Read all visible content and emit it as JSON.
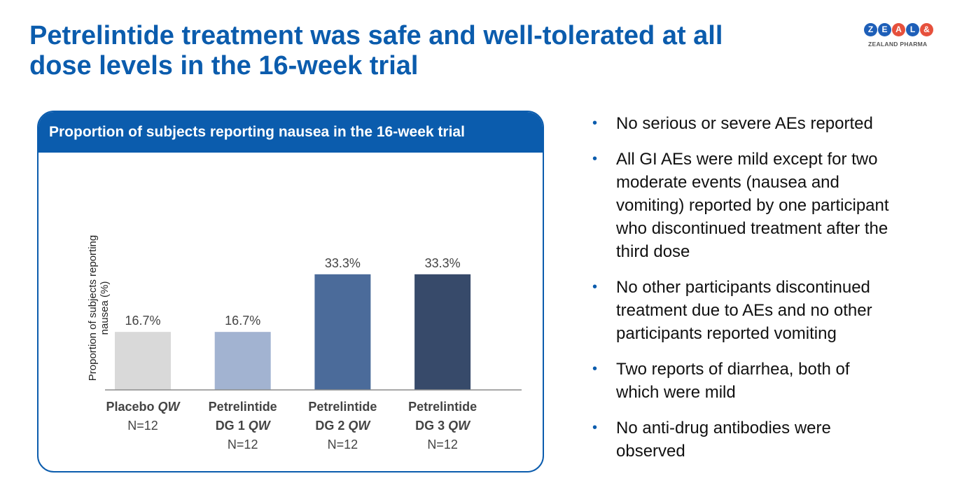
{
  "slide": {
    "title": "Petrelintide treatment was safe and well-tolerated at all dose levels in the 16-week trial"
  },
  "logo": {
    "letters": [
      "Z",
      "E",
      "A",
      "L",
      "&"
    ],
    "letter_colors": [
      "#1e5fb8",
      "#1e5fb8",
      "#e6503c",
      "#1e5fb8",
      "#e6503c"
    ],
    "subtitle": "ZEALAND PHARMA"
  },
  "panel": {
    "header": "Proportion of subjects reporting nausea in the 16-week trial"
  },
  "chart_data": {
    "type": "bar",
    "ylabel_lines": [
      "Proportion of subjects reporting",
      "nausea (%)"
    ],
    "categories": [
      {
        "line1": "Placebo",
        "line1_italic": "QW",
        "line2": "N=12",
        "line2_italic": "",
        "line3": ""
      },
      {
        "line1": "Petrelintide",
        "line1_italic": "",
        "line2": "DG 1",
        "line2_italic": "QW",
        "line3": "N=12"
      },
      {
        "line1": "Petrelintide",
        "line1_italic": "",
        "line2": "DG 2",
        "line2_italic": "QW",
        "line3": "N=12"
      },
      {
        "line1": "Petrelintide",
        "line1_italic": "",
        "line2": "DG 3",
        "line2_italic": "QW",
        "line3": "N=12"
      }
    ],
    "values": [
      16.7,
      16.7,
      33.3,
      33.3
    ],
    "value_labels": [
      "16.7%",
      "16.7%",
      "33.3%",
      "33.3%"
    ],
    "colors": [
      "#d9d9d9",
      "#a2b3d1",
      "#4b6b9a",
      "#374a6a"
    ],
    "ylim": [
      0,
      40
    ],
    "grid": false,
    "legend": "none"
  },
  "bullets": [
    {
      "lines": [
        "No serious or severe AEs reported"
      ]
    },
    {
      "lines": [
        "All GI AEs were mild except for two",
        "moderate events (nausea and",
        "vomiting) reported by one participant",
        "who discontinued treatment after the",
        "third dose"
      ]
    },
    {
      "lines": [
        "No other participants discontinued",
        "treatment due to AEs and no other",
        "participants reported vomiting"
      ]
    },
    {
      "lines": [
        "Two reports of diarrhea, both of",
        "which were mild"
      ]
    },
    {
      "lines": [
        "No anti-drug antibodies were",
        "observed"
      ]
    }
  ]
}
